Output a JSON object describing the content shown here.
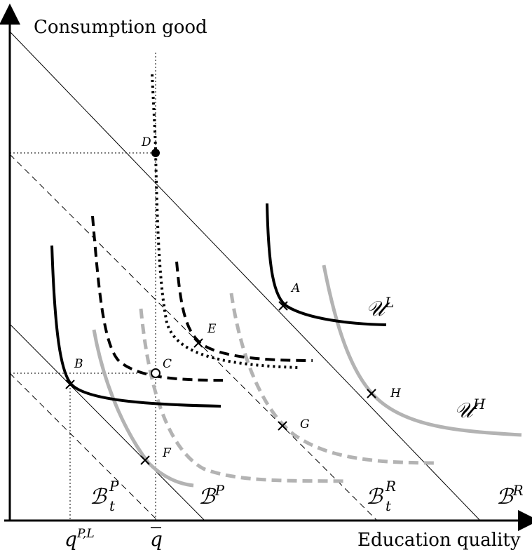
{
  "axes": {
    "y_label": "Consumption good",
    "x_label": "Education quality",
    "tick_q_pl": "q",
    "tick_q_pl_sup": "P,L",
    "tick_q_bar": "q"
  },
  "points": {
    "A": "A",
    "B": "B",
    "C": "C",
    "D": "D",
    "E": "E",
    "F": "F",
    "G": "G",
    "H": "H"
  },
  "curve_labels": {
    "U_L": "𝒰",
    "U_L_sup": "L",
    "U_H": "𝒰",
    "U_H_sup": "H",
    "B_R": "ℬ",
    "B_R_sup": "R",
    "B_P": "ℬ",
    "B_P_sup": "P",
    "B_t_R": "ℬ",
    "B_t_R_sup": "R",
    "B_t_R_sub": "t",
    "B_t_P": "ℬ",
    "B_t_P_sup": "P",
    "B_t_P_sub": "t"
  },
  "colors": {
    "black": "#000000",
    "gray": "#b3b3b3"
  }
}
